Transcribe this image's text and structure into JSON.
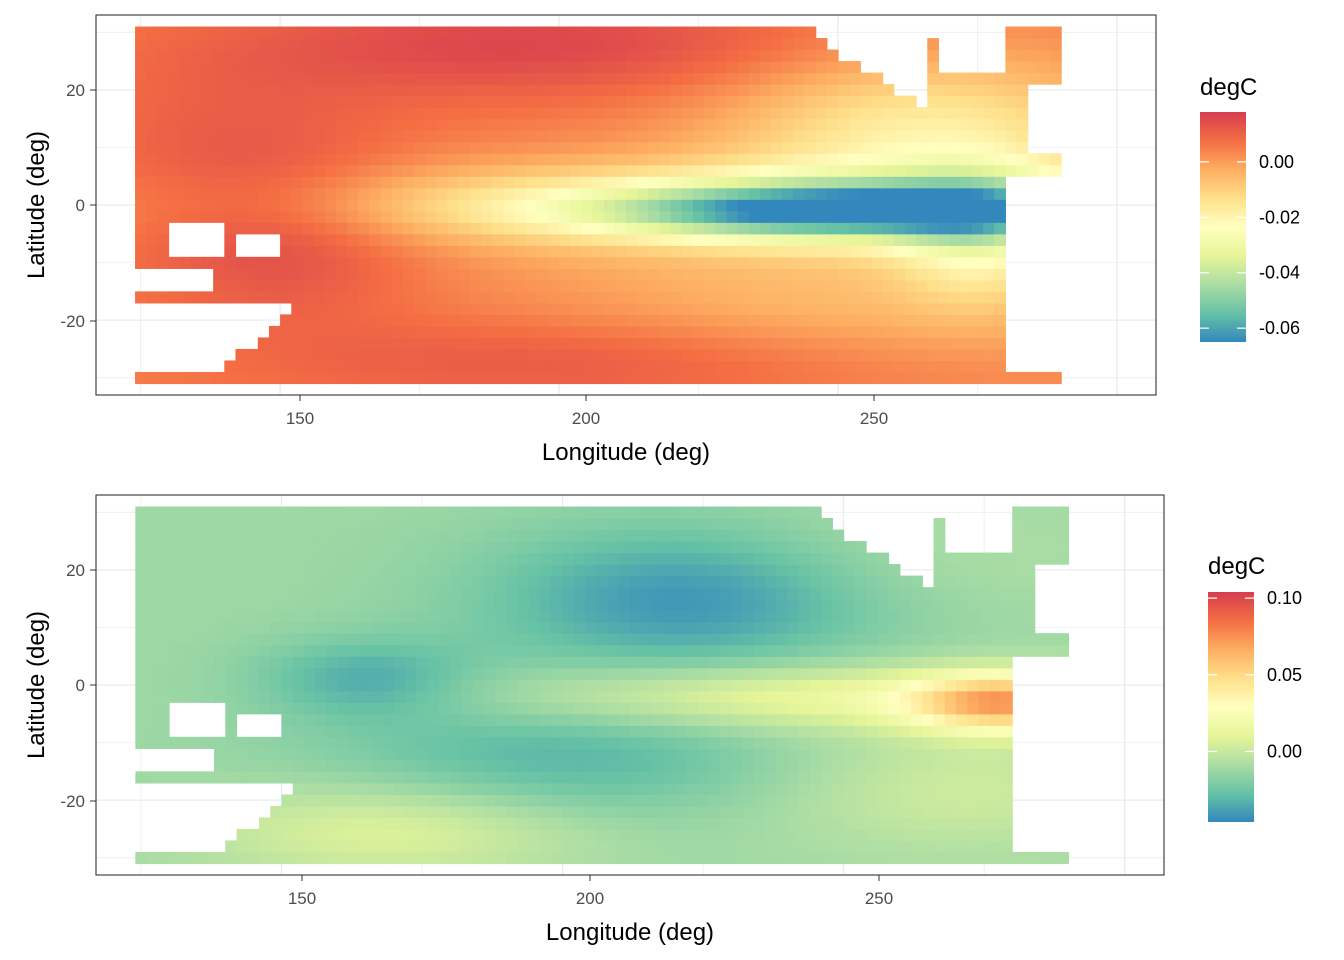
{
  "colors": {
    "palette_spectral": [
      "#3288BD",
      "#66C2A5",
      "#ABDDA4",
      "#E6F598",
      "#FFFFBF",
      "#FEE08B",
      "#FDAE61",
      "#F46D43",
      "#D53E4F"
    ],
    "grid": "#EBEBEB",
    "panel_border": "#333333",
    "tick_text": "#4D4D4D"
  },
  "chart_data": [
    {
      "type": "heatmap",
      "title": "",
      "xlabel": "Longitude (deg)",
      "ylabel": "Latitude (deg)",
      "xlim": [
        117,
        307
      ],
      "ylim": [
        -33,
        33
      ],
      "x_ticks": [
        "150",
        "200",
        "250"
      ],
      "y_ticks": [
        "20",
        "0",
        "-20"
      ],
      "grid": true,
      "legend": {
        "title": "degC",
        "position": "right",
        "range": [
          -0.065,
          0.018
        ],
        "ticks": [
          "0.00",
          "-0.02",
          "-0.04",
          "-0.06"
        ],
        "tick_values": [
          0.0,
          -0.02,
          -0.04,
          -0.06
        ]
      },
      "grid_spacing_deg": 2,
      "domain": {
        "lon": [
          125,
          289
        ],
        "lat": [
          -30,
          30
        ]
      },
      "coast_mask": "pacific",
      "field": "pattern1",
      "features": [
        {
          "name": "equatorial cold tongue minimum",
          "lon": 248,
          "lat": -1,
          "value": -0.063
        },
        {
          "name": "north subtropical maximum",
          "lon": 197,
          "lat": 28,
          "value": 0.016
        },
        {
          "name": "south subtropical maximum",
          "lon": 210,
          "lat": -28,
          "value": 0.014
        },
        {
          "name": "western pacific warm region",
          "lon": 152,
          "lat": -8,
          "value": 0.01
        }
      ]
    },
    {
      "type": "heatmap",
      "title": "",
      "xlabel": "Longitude (deg)",
      "ylabel": "Latitude (deg)",
      "xlim": [
        117,
        307
      ],
      "ylim": [
        -33,
        33
      ],
      "x_ticks": [
        "150",
        "200",
        "250"
      ],
      "y_ticks": [
        "20",
        "0",
        "-20"
      ],
      "grid": true,
      "legend": {
        "title": "degC",
        "position": "right",
        "range": [
          -0.046,
          0.104
        ],
        "ticks": [
          "0.10",
          "0.05",
          "0.00"
        ],
        "tick_values": [
          0.1,
          0.05,
          0.0
        ]
      },
      "grid_spacing_deg": 2,
      "domain": {
        "lon": [
          125,
          289
        ],
        "lat": [
          -30,
          30
        ]
      },
      "coast_mask": "pacific",
      "field": "pattern2",
      "features": [
        {
          "name": "eastern equatorial maximum",
          "lon": 278,
          "lat": -3,
          "value": 0.1
        },
        {
          "name": "north-central minimum",
          "lon": 222,
          "lat": 15,
          "value": -0.045
        },
        {
          "name": "western equatorial minimum",
          "lon": 165,
          "lat": 1,
          "value": -0.035
        },
        {
          "name": "southern minimum",
          "lon": 200,
          "lat": -13,
          "value": -0.03
        }
      ]
    }
  ]
}
